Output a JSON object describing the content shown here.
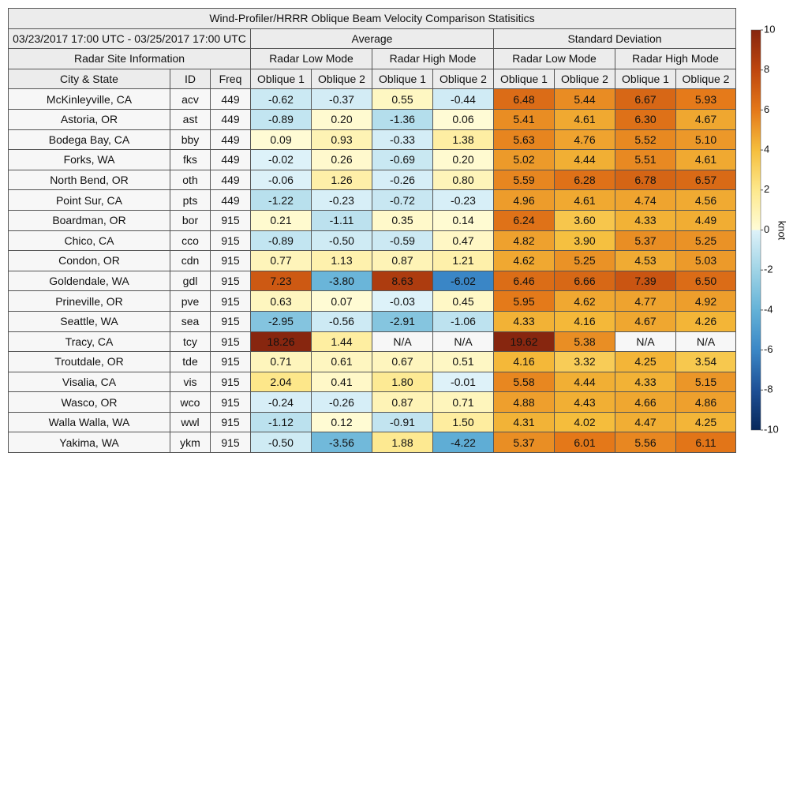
{
  "table": {
    "title": "Wind-Profiler/HRRR Oblique Beam Velocity Comparison Statisitics",
    "date_range": "03/23/2017 17:00 UTC - 03/25/2017 17:00 UTC",
    "groups": [
      "Average",
      "Standard Deviation"
    ],
    "site_header": "Radar Site Information",
    "modes": [
      "Radar Low Mode",
      "Radar High Mode"
    ],
    "columns": [
      "City & State",
      "ID",
      "Freq",
      "Oblique 1",
      "Oblique 2"
    ],
    "rows": [
      [
        "McKinleyville, CA",
        "acv",
        449,
        "-0.62",
        "-0.37",
        "0.55",
        "-0.44",
        "6.48",
        "5.44",
        "6.67",
        "5.93"
      ],
      [
        "Astoria, OR",
        "ast",
        449,
        "-0.89",
        "0.20",
        "-1.36",
        "0.06",
        "5.41",
        "4.61",
        "6.30",
        "4.67"
      ],
      [
        "Bodega Bay, CA",
        "bby",
        449,
        "0.09",
        "0.93",
        "-0.33",
        "1.38",
        "5.63",
        "4.76",
        "5.52",
        "5.10"
      ],
      [
        "Forks, WA",
        "fks",
        449,
        "-0.02",
        "0.26",
        "-0.69",
        "0.20",
        "5.02",
        "4.44",
        "5.51",
        "4.61"
      ],
      [
        "North Bend, OR",
        "oth",
        449,
        "-0.06",
        "1.26",
        "-0.26",
        "0.80",
        "5.59",
        "6.28",
        "6.78",
        "6.57"
      ],
      [
        "Point Sur, CA",
        "pts",
        449,
        "-1.22",
        "-0.23",
        "-0.72",
        "-0.23",
        "4.96",
        "4.61",
        "4.74",
        "4.56"
      ],
      [
        "Boardman, OR",
        "bor",
        915,
        "0.21",
        "-1.11",
        "0.35",
        "0.14",
        "6.24",
        "3.60",
        "4.33",
        "4.49"
      ],
      [
        "Chico, CA",
        "cco",
        915,
        "-0.89",
        "-0.50",
        "-0.59",
        "0.47",
        "4.82",
        "3.90",
        "5.37",
        "5.25"
      ],
      [
        "Condon, OR",
        "cdn",
        915,
        "0.77",
        "1.13",
        "0.87",
        "1.21",
        "4.62",
        "5.25",
        "4.53",
        "5.03"
      ],
      [
        "Goldendale, WA",
        "gdl",
        915,
        "7.23",
        "-3.80",
        "8.63",
        "-6.02",
        "6.46",
        "6.66",
        "7.39",
        "6.50"
      ],
      [
        "Prineville, OR",
        "pve",
        915,
        "0.63",
        "0.07",
        "-0.03",
        "0.45",
        "5.95",
        "4.62",
        "4.77",
        "4.92"
      ],
      [
        "Seattle, WA",
        "sea",
        915,
        "-2.95",
        "-0.56",
        "-2.91",
        "-1.06",
        "4.33",
        "4.16",
        "4.67",
        "4.26"
      ],
      [
        "Tracy, CA",
        "tcy",
        915,
        "18.26",
        "1.44",
        "N/A",
        "N/A",
        "19.62",
        "5.38",
        "N/A",
        "N/A"
      ],
      [
        "Troutdale, OR",
        "tde",
        915,
        "0.71",
        "0.61",
        "0.67",
        "0.51",
        "4.16",
        "3.32",
        "4.25",
        "3.54"
      ],
      [
        "Visalia, CA",
        "vis",
        915,
        "2.04",
        "0.41",
        "1.80",
        "-0.01",
        "5.58",
        "4.44",
        "4.33",
        "5.15"
      ],
      [
        "Wasco, OR",
        "wco",
        915,
        "-0.24",
        "-0.26",
        "0.87",
        "0.71",
        "4.88",
        "4.43",
        "4.66",
        "4.86"
      ],
      [
        "Walla Walla, WA",
        "wwl",
        915,
        "-1.12",
        "0.12",
        "-0.91",
        "1.50",
        "4.31",
        "4.02",
        "4.47",
        "4.25"
      ],
      [
        "Yakima, WA",
        "ykm",
        915,
        "-0.50",
        "-3.56",
        "1.88",
        "-4.22",
        "5.37",
        "6.01",
        "5.56",
        "6.11"
      ]
    ]
  },
  "colorbar": {
    "range": [
      -10,
      10
    ],
    "ticks": [
      10,
      8,
      6,
      4,
      2,
      0,
      -2,
      -4,
      -6,
      -8,
      -10
    ],
    "label": "knot"
  }
}
